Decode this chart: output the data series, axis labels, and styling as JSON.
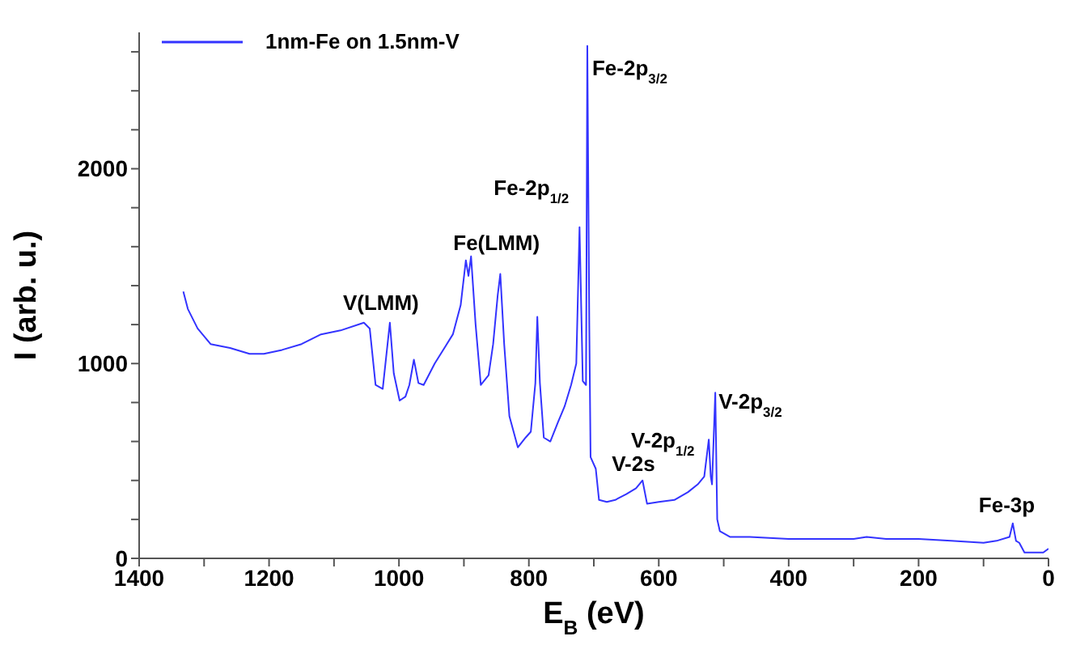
{
  "chart_data": {
    "type": "line",
    "xlabel": "E$_{B}$ (eV)",
    "ylabel": "I  (arb. u.)",
    "xlim": [
      1400,
      0
    ],
    "xticks": [
      1400,
      {
        "value": 1300,
        "label": null
      },
      1200,
      {
        "value": 1100,
        "label": null
      },
      1000,
      {
        "value": 900,
        "label": null
      },
      800,
      {
        "value": 700,
        "label": null
      },
      600,
      {
        "value": 500,
        "label": null
      },
      400,
      {
        "value": 300,
        "label": null
      },
      200,
      {
        "value": 100,
        "label": null
      },
      0
    ],
    "ylim": [
      0,
      2700
    ],
    "yticks": [
      0,
      {
        "value": 200,
        "label": null
      },
      {
        "value": 400,
        "label": null
      },
      {
        "value": 600,
        "label": null
      },
      {
        "value": 800,
        "label": null
      },
      1000,
      {
        "value": 1200,
        "label": null
      },
      {
        "value": 1400,
        "label": null
      },
      {
        "value": 1600,
        "label": null
      },
      {
        "value": 1800,
        "label": null
      },
      2000,
      {
        "value": 2200,
        "label": null
      },
      {
        "value": 2400,
        "label": null
      },
      {
        "value": 2600,
        "label": null
      }
    ],
    "legend": "top left",
    "grid": false,
    "series": [
      {
        "name": "1nm-Fe on 1.5nm-V",
        "color": "#3333ff",
        "x": [
          1332,
          1325,
          1310,
          1290,
          1260,
          1230,
          1208,
          1180,
          1150,
          1120,
          1090,
          1054,
          1045,
          1036,
          1025,
          1014,
          1008,
          999,
          990,
          984,
          977,
          970,
          962,
          945,
          930,
          917,
          905,
          897,
          893,
          889,
          882,
          874,
          862,
          855,
          848,
          844,
          838,
          830,
          817,
          805,
          797,
          790,
          787,
          783,
          777,
          767,
          755,
          745,
          735,
          727,
          722,
          717,
          712,
          710,
          707,
          705,
          697,
          692,
          680,
          667,
          650,
          635,
          625,
          618,
          600,
          576,
          555,
          540,
          530,
          523,
          520,
          518,
          513,
          510,
          506,
          490,
          460,
          400,
          300,
          280,
          250,
          200,
          150,
          100,
          80,
          60,
          55,
          50,
          45,
          37,
          20,
          8,
          0
        ],
        "values": [
          1370,
          1280,
          1180,
          1100,
          1080,
          1050,
          1050,
          1070,
          1100,
          1150,
          1170,
          1210,
          1180,
          890,
          870,
          1210,
          950,
          810,
          830,
          890,
          1020,
          900,
          890,
          1000,
          1080,
          1150,
          1300,
          1530,
          1450,
          1550,
          1200,
          890,
          940,
          1100,
          1350,
          1460,
          1100,
          730,
          570,
          620,
          650,
          900,
          1240,
          900,
          620,
          600,
          700,
          780,
          890,
          1000,
          1700,
          910,
          890,
          2630,
          1200,
          520,
          460,
          300,
          290,
          300,
          330,
          360,
          400,
          280,
          290,
          300,
          340,
          380,
          420,
          610,
          420,
          380,
          850,
          200,
          140,
          110,
          110,
          100,
          100,
          110,
          100,
          100,
          90,
          80,
          90,
          110,
          180,
          90,
          80,
          30,
          30,
          30,
          50
        ]
      }
    ],
    "annotations": [
      {
        "text": "Fe-2p$_{3/2}$",
        "x": 710,
        "y": 2630
      },
      {
        "text": "Fe-2p$_{1/2}$",
        "x": 722,
        "y": 1700
      },
      {
        "text": "Fe(LMM)",
        "x": 889,
        "y": 1550
      },
      {
        "text": "V(LMM)",
        "x": 1014,
        "y": 1210
      },
      {
        "text": "V-2s",
        "x": 625,
        "y": 400
      },
      {
        "text": "V-2p$_{1/2}$",
        "x": 523,
        "y": 610
      },
      {
        "text": "V-2p$_{3/2}$",
        "x": 513,
        "y": 850
      },
      {
        "text": "Fe-3p",
        "x": 55,
        "y": 180
      }
    ]
  }
}
